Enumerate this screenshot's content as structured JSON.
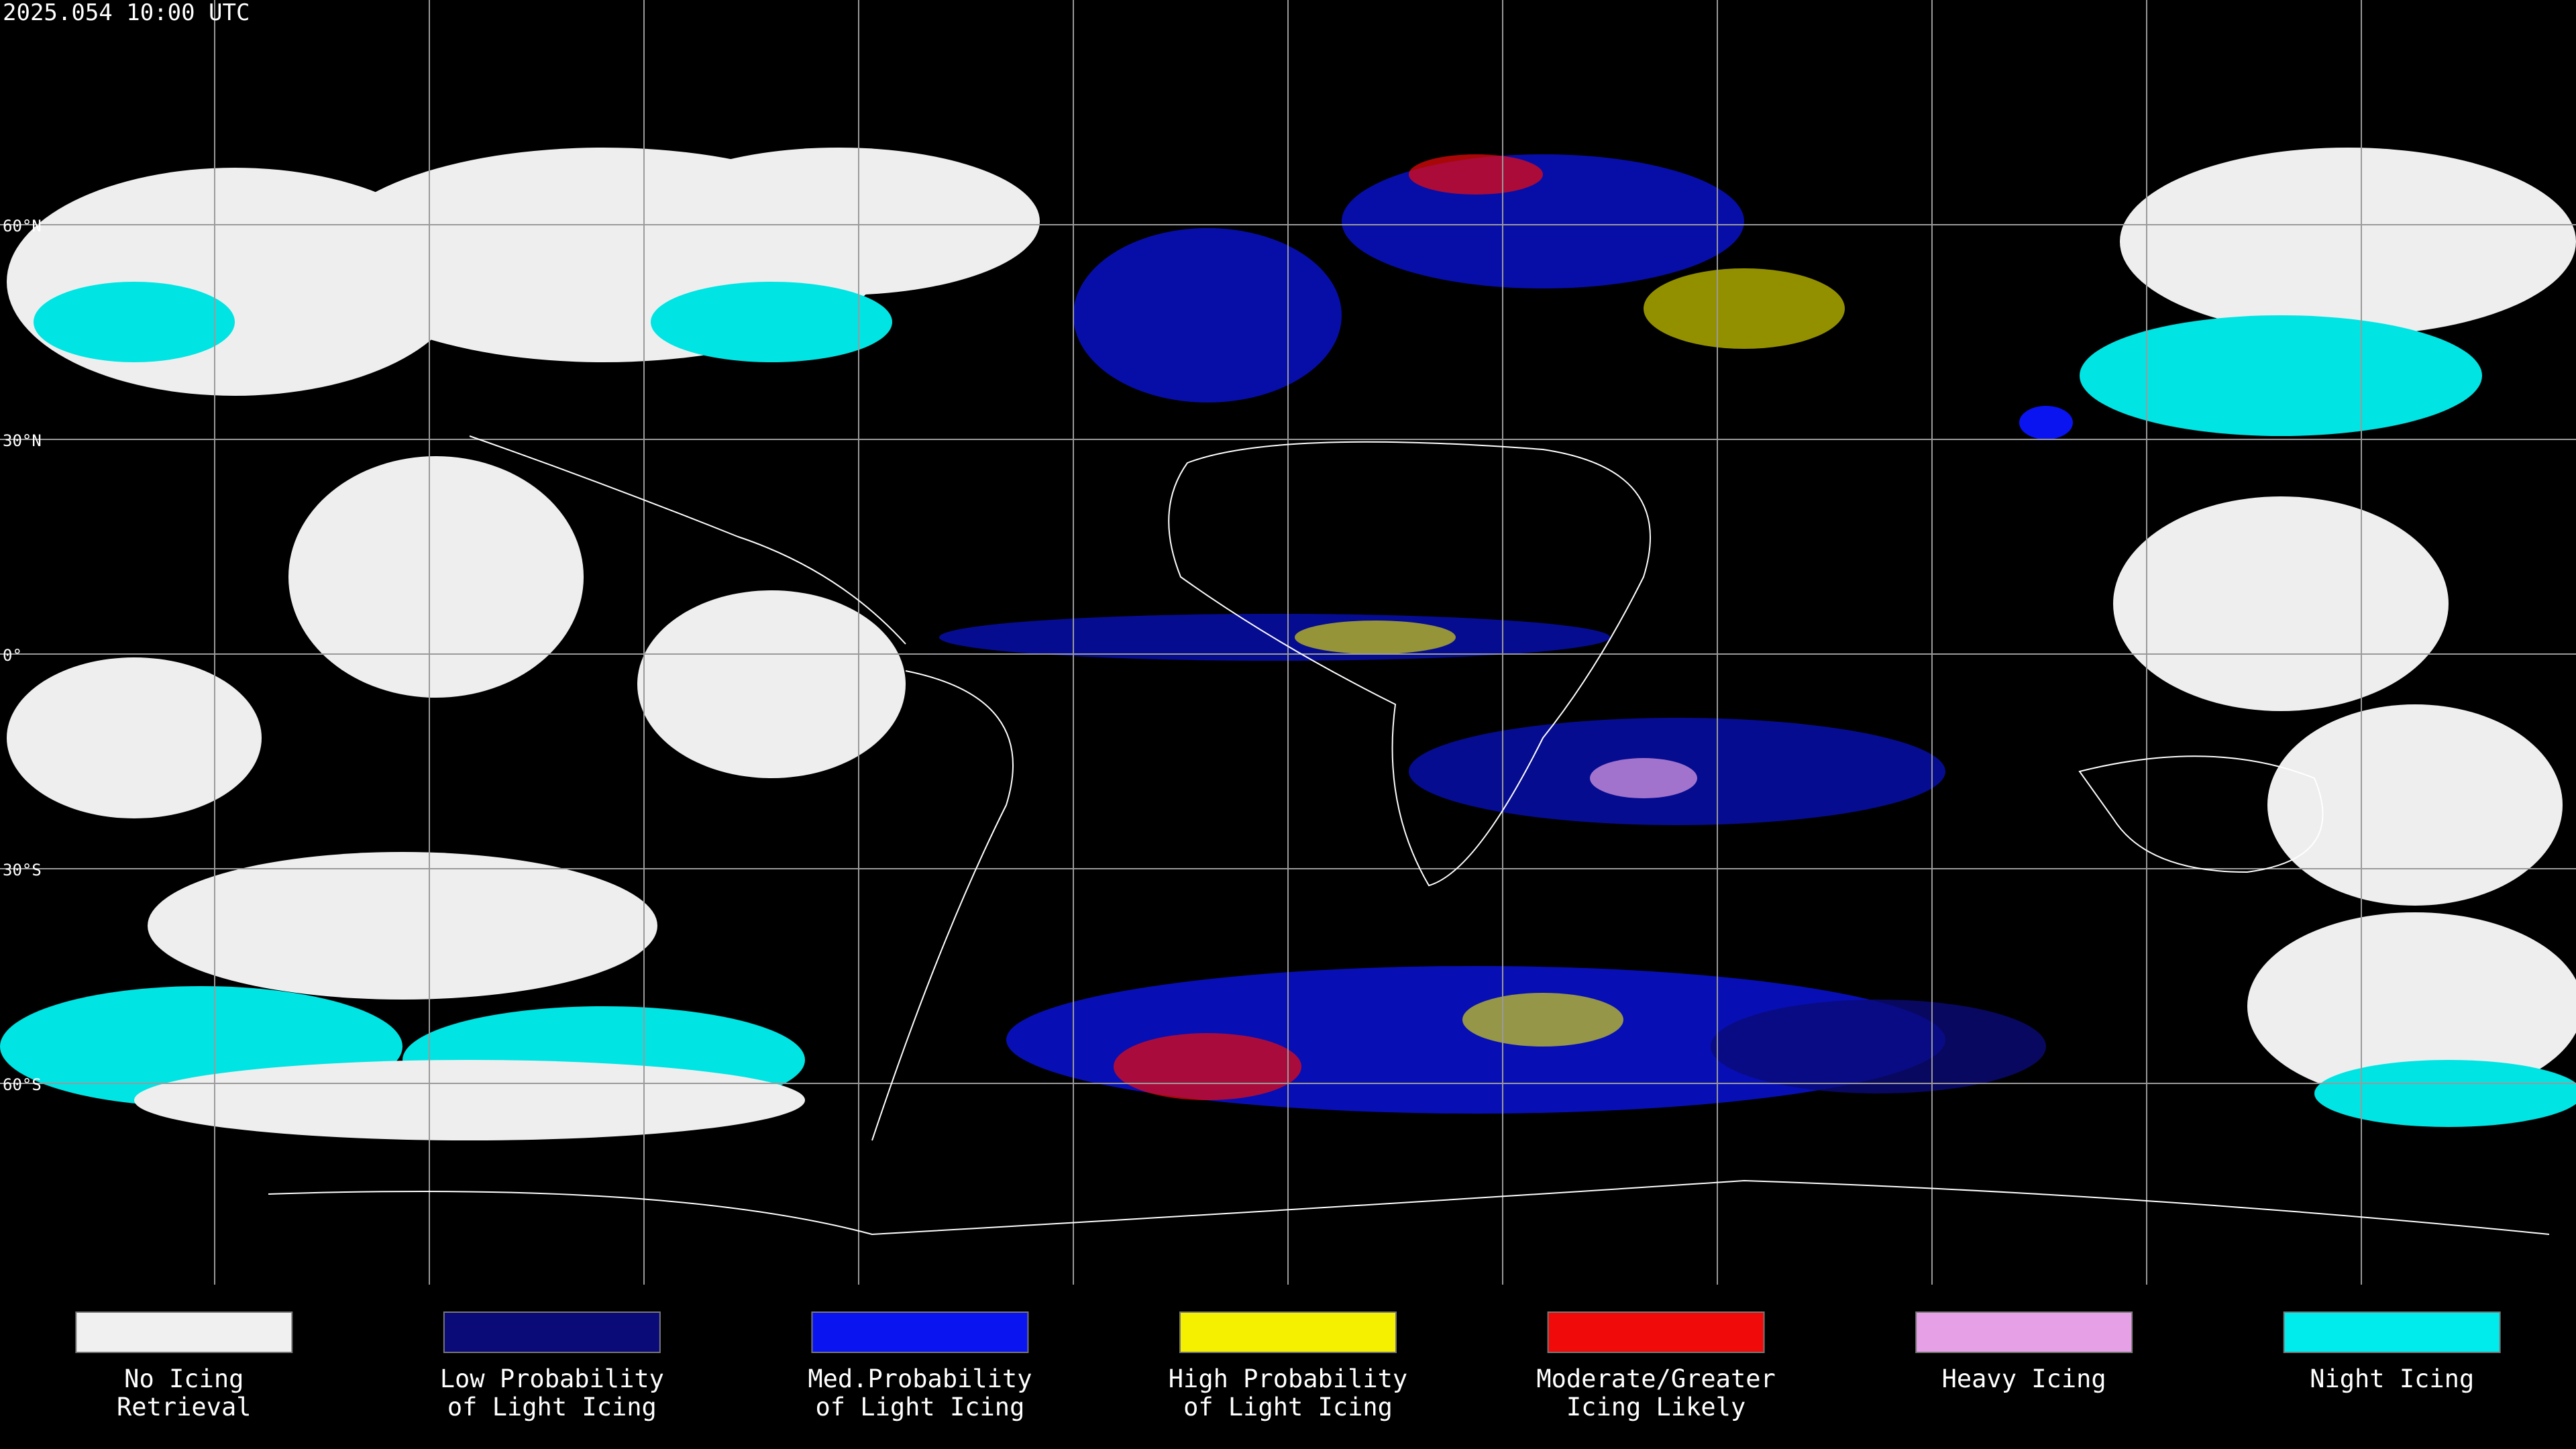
{
  "header": {
    "timestamp": "2025.054 10:00 UTC"
  },
  "latitude_labels": [
    "60°N",
    "30°N",
    "0°",
    "30°S",
    "60°S"
  ],
  "legend": [
    {
      "lines": [
        "No Icing",
        "Retrieval"
      ],
      "color": "#f0f0f0"
    },
    {
      "lines": [
        "Low Probability",
        "of Light Icing"
      ],
      "color": "#0a0a78"
    },
    {
      "lines": [
        "Med.Probability",
        "of Light Icing"
      ],
      "color": "#0a14f0"
    },
    {
      "lines": [
        "High Probability",
        "of Light Icing"
      ],
      "color": "#f5f000"
    },
    {
      "lines": [
        "Moderate/Greater",
        "Icing Likely"
      ],
      "color": "#f00a0a"
    },
    {
      "lines": [
        "Heavy Icing"
      ],
      "color": "#e6a0e6"
    },
    {
      "lines": [
        "Night Icing"
      ],
      "color": "#00ecec"
    }
  ]
}
